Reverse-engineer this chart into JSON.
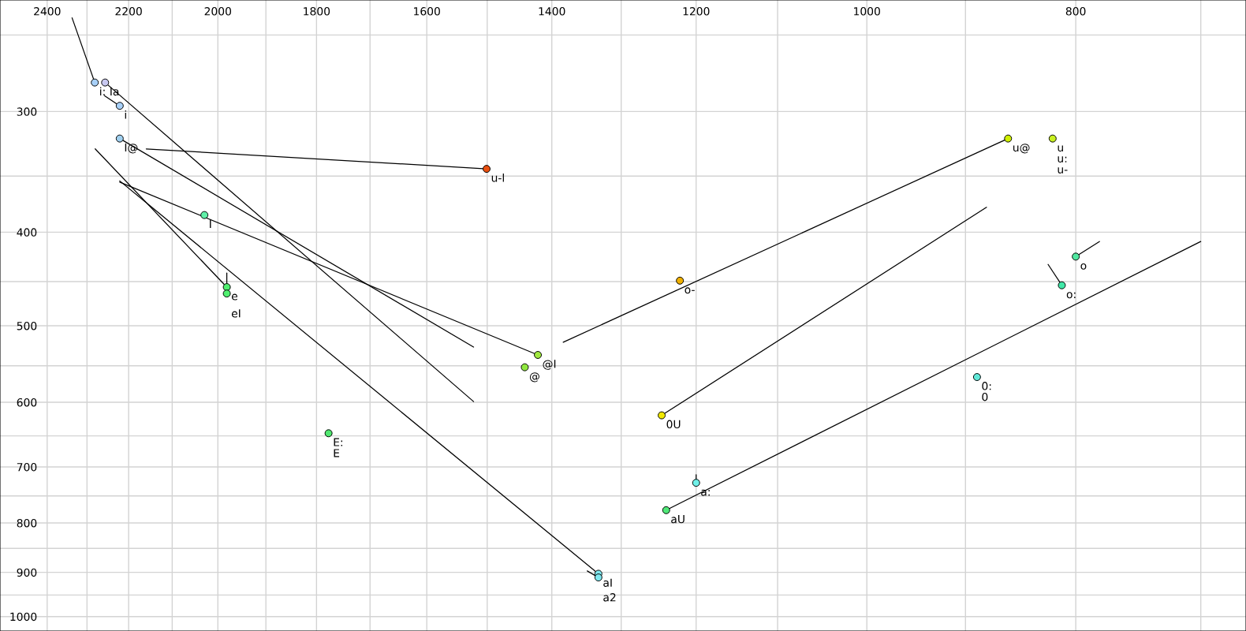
{
  "chart_data": {
    "type": "scatter",
    "log": "xy",
    "grid": true,
    "line_style": "solid",
    "xlim": [
      2524,
      667
    ],
    "ylim": [
      1035,
      230
    ],
    "xticks": [
      2400,
      {
        "value": 2300,
        "label": null
      },
      2200,
      {
        "value": 2100,
        "label": null
      },
      2000,
      {
        "value": 1900,
        "label": null
      },
      1800,
      {
        "value": 1700,
        "label": null
      },
      1600,
      {
        "value": 1500,
        "label": null
      },
      1400,
      {
        "value": 1300,
        "label": null
      },
      1200,
      {
        "value": 1100,
        "label": null
      },
      1000,
      {
        "value": 900,
        "label": null
      },
      800,
      {
        "value": 700,
        "label": null
      }
    ],
    "yticks": [
      {
        "value": 250,
        "label": null
      },
      300,
      {
        "value": 350,
        "label": null
      },
      400,
      {
        "value": 450,
        "label": null
      },
      500,
      {
        "value": 550,
        "label": null
      },
      600,
      {
        "value": 650,
        "label": null
      },
      700,
      {
        "value": 750,
        "label": null
      },
      800,
      {
        "value": 850,
        "label": null
      },
      900,
      {
        "value": 950,
        "label": null
      },
      1000
    ],
    "series": [
      {
        "type": "line",
        "color": "#000000",
        "x": [
          2337,
          2281
        ],
        "values": [
          240,
          280
        ]
      },
      {
        "type": "line",
        "color": "#000000",
        "x": [
          2256,
          1522
        ],
        "values": [
          280,
          599
        ]
      },
      {
        "type": "line",
        "color": "#000000",
        "x": [
          2257,
          2221
        ],
        "values": [
          289,
          296
        ]
      },
      {
        "type": "line",
        "color": "#000000",
        "x": [
          2221,
          1522
        ],
        "values": [
          320,
          526
        ]
      },
      {
        "type": "line",
        "color": "#000000",
        "x": [
          2159,
          1501
        ],
        "values": [
          328,
          344
        ]
      },
      {
        "type": "line",
        "color": "#000000",
        "x": [
          2221,
          1421
        ],
        "values": [
          355,
          536
        ]
      },
      {
        "type": "line",
        "color": "#000000",
        "x": [
          2280,
          1981
        ],
        "values": [
          328,
          456
        ]
      },
      {
        "type": "line",
        "color": "#000000",
        "x": [
          1981,
          1981
        ],
        "values": [
          441,
          456
        ]
      },
      {
        "type": "line",
        "color": "#000000",
        "x": [
          2221,
          1332
        ],
        "values": [
          354,
          903
        ]
      },
      {
        "type": "line",
        "color": "#000000",
        "x": [
          1348,
          1332
        ],
        "values": [
          897,
          911
        ]
      },
      {
        "type": "line",
        "color": "#000000",
        "x": [
          1383,
          860
        ],
        "values": [
          520,
          320
        ]
      },
      {
        "type": "line",
        "color": "#000000",
        "x": [
          1245,
          880
        ],
        "values": [
          619,
          377
        ]
      },
      {
        "type": "line",
        "color": "#000000",
        "x": [
          1239,
          700
        ],
        "values": [
          776,
          409
        ]
      },
      {
        "type": "line",
        "color": "#000000",
        "x": [
          800,
          780
        ],
        "values": [
          424,
          409
        ]
      },
      {
        "type": "line",
        "color": "#000000",
        "x": [
          824,
          812
        ],
        "values": [
          432,
          454
        ]
      },
      {
        "type": "line",
        "color": "#000000",
        "x": [
          1200,
          1200
        ],
        "values": [
          713,
          727
        ]
      },
      {
        "marker": "circle",
        "x": [
          2281,
          2256,
          2221,
          2221,
          1501,
          2029,
          1981,
          1981,
          1421,
          1441,
          1777,
          1332,
          1332,
          1221,
          860,
          820,
          800,
          812,
          1245,
          1200,
          1239,
          889
        ],
        "values": [
          280,
          280,
          296,
          320,
          344,
          384,
          456,
          463,
          536,
          552,
          646,
          903,
          911,
          449,
          320,
          320,
          424,
          454,
          619,
          727,
          776,
          565
        ],
        "colors": [
          "#a8d0f8",
          "#c8c8f0",
          "#a8d0f8",
          "#a0d0f0",
          "#e85010",
          "#60f0a8",
          "#50f070",
          "#50f070",
          "#a0e840",
          "#90e840",
          "#50e870",
          "#80e8f0",
          "#80e8f0",
          "#f0b000",
          "#d0f000",
          "#c8f020",
          "#50e8a0",
          "#40e8a8",
          "#f0e800",
          "#70f0e8",
          "#50e878",
          "#60e8d8"
        ]
      }
    ],
    "annotations": [
      {
        "text": "i:",
        "x": 2281,
        "y": 280
      },
      {
        "text": "Ia",
        "x": 2256,
        "y": 280
      },
      {
        "text": "i",
        "x": 2221,
        "y": 296
      },
      {
        "text": "I@",
        "x": 2221,
        "y": 320
      },
      {
        "text": "u-l",
        "x": 1501,
        "y": 344
      },
      {
        "text": "I",
        "x": 2029,
        "y": 384
      },
      {
        "text": "e",
        "x": 1981,
        "y": 456
      },
      {
        "text": "eI",
        "x": 1981,
        "y": 463
      },
      {
        "text": "@I",
        "x": 1421,
        "y": 536
      },
      {
        "text": "@",
        "x": 1441,
        "y": 552
      },
      {
        "text": "E:",
        "x": 1777,
        "y": 646
      },
      {
        "text": "E",
        "x": 1777,
        "y": 646
      },
      {
        "text": "aI",
        "x": 1332,
        "y": 903
      },
      {
        "text": "a2",
        "x": 1332,
        "y": 911
      },
      {
        "text": "o-",
        "x": 1221,
        "y": 449
      },
      {
        "text": "u@",
        "x": 860,
        "y": 320
      },
      {
        "text": "u",
        "x": 820,
        "y": 320
      },
      {
        "text": "u:",
        "x": 820,
        "y": 320
      },
      {
        "text": "u-",
        "x": 820,
        "y": 320
      },
      {
        "text": "o",
        "x": 800,
        "y": 424
      },
      {
        "text": "o:",
        "x": 812,
        "y": 454
      },
      {
        "text": "0U",
        "x": 1245,
        "y": 619
      },
      {
        "text": "a:",
        "x": 1200,
        "y": 727
      },
      {
        "text": "aU",
        "x": 1239,
        "y": 776
      },
      {
        "text": "0:",
        "x": 889,
        "y": 565
      },
      {
        "text": "0",
        "x": 889,
        "y": 565
      }
    ]
  }
}
